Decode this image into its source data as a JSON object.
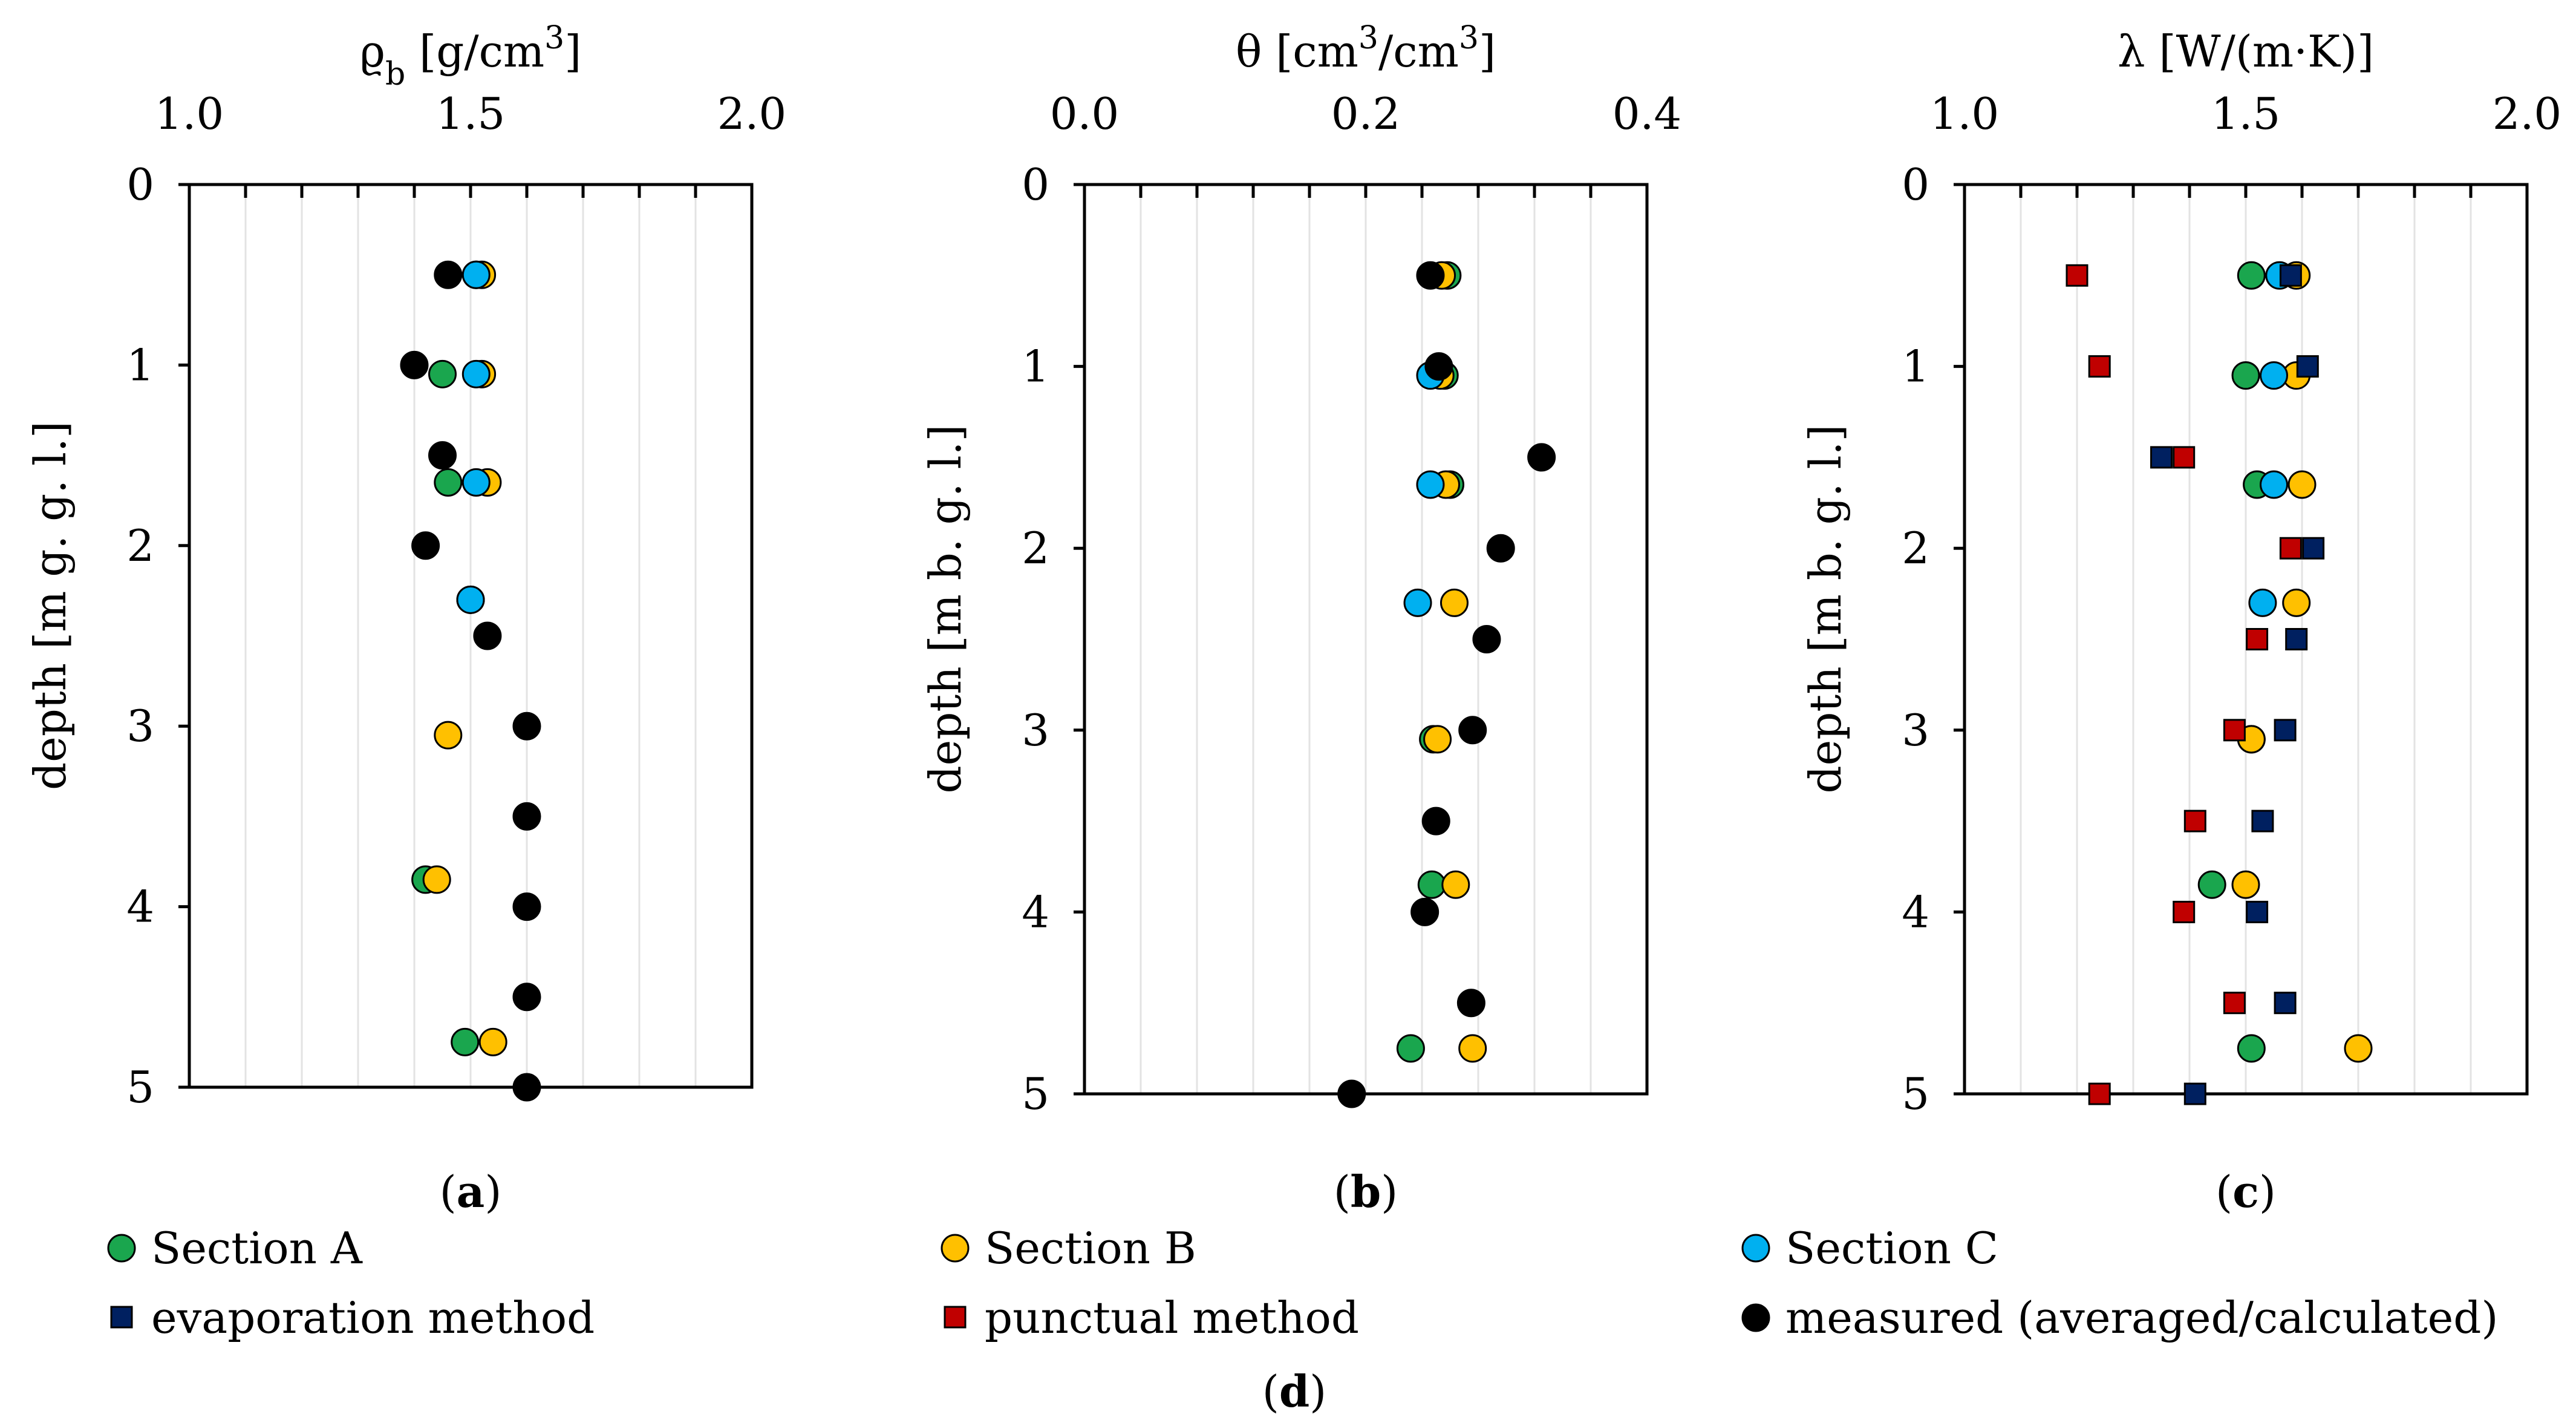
{
  "colors": {
    "section_a": "#1aa64e",
    "section_b": "#ffc000",
    "section_c": "#00b0f0",
    "evaporation": "#002060",
    "punctual": "#c00000",
    "measured": "#000000",
    "grid": "#e3e3e3"
  },
  "chart_data": [
    {
      "type": "scatter",
      "panel_label": "a",
      "xlabel": "ϱ",
      "xlabel_sub": "b",
      "xlabel_unit_pre": " [g/cm",
      "xlabel_sup": "3",
      "xlabel_unit_post": "]",
      "ylabel": "depth [m g. g. l.]",
      "xlim": [
        1.0,
        2.0
      ],
      "ylim": [
        0,
        5
      ],
      "xticks": [
        1.0,
        1.5,
        2.0
      ],
      "xtick_labels": [
        "1.0",
        "1.5",
        "2.0"
      ],
      "xminor_step": 0.1,
      "yticks": [
        0,
        1,
        2,
        3,
        4,
        5
      ],
      "ytick_labels": [
        "0",
        "1",
        "2",
        "3",
        "4",
        "5"
      ],
      "series": [
        {
          "name": "Section A",
          "key": "section_a",
          "marker": "circle",
          "points": [
            [
              1.51,
              0.5
            ],
            [
              1.45,
              1.05
            ],
            [
              1.46,
              1.65
            ],
            [
              1.5,
              2.3
            ],
            [
              1.42,
              3.85
            ],
            [
              1.49,
              4.75
            ]
          ]
        },
        {
          "name": "Section B",
          "key": "section_b",
          "marker": "circle",
          "points": [
            [
              1.52,
              0.5
            ],
            [
              1.52,
              1.05
            ],
            [
              1.53,
              1.65
            ],
            [
              1.46,
              3.05
            ],
            [
              1.44,
              3.85
            ],
            [
              1.54,
              4.75
            ]
          ]
        },
        {
          "name": "Section C",
          "key": "section_c",
          "marker": "circle",
          "points": [
            [
              1.51,
              0.5
            ],
            [
              1.51,
              1.05
            ],
            [
              1.51,
              1.65
            ],
            [
              1.5,
              2.3
            ]
          ]
        },
        {
          "name": "measured (averaged/calculated)",
          "key": "measured",
          "marker": "circle",
          "points": [
            [
              1.46,
              0.5
            ],
            [
              1.4,
              1.0
            ],
            [
              1.45,
              1.5
            ],
            [
              1.42,
              2.0
            ],
            [
              1.53,
              2.5
            ],
            [
              1.6,
              3.0
            ],
            [
              1.6,
              3.5
            ],
            [
              1.6,
              4.0
            ],
            [
              1.6,
              4.5
            ],
            [
              1.6,
              5.0
            ]
          ]
        }
      ]
    },
    {
      "type": "scatter",
      "panel_label": "b",
      "xlabel": "θ [cm",
      "xlabel_sub": "",
      "xlabel_unit_pre": "",
      "xlabel_sup": "3",
      "xlabel_unit_post": "/cm",
      "xlabel_sup2": "3",
      "xlabel_tail": "]",
      "ylabel": "depth [m b. g. l.]",
      "xlim": [
        0.0,
        0.4
      ],
      "ylim": [
        0,
        5
      ],
      "xticks": [
        0.0,
        0.2,
        0.4
      ],
      "xtick_labels": [
        "0.0",
        "0.2",
        "0.4"
      ],
      "xminor_step": 0.04,
      "yticks": [
        0,
        1,
        2,
        3,
        4,
        5
      ],
      "ytick_labels": [
        "0",
        "1",
        "2",
        "3",
        "4",
        "5"
      ],
      "series": [
        {
          "name": "Section A",
          "key": "section_a",
          "marker": "circle",
          "points": [
            [
              0.258,
              0.5
            ],
            [
              0.256,
              1.05
            ],
            [
              0.26,
              1.65
            ],
            [
              0.248,
              3.05
            ],
            [
              0.247,
              3.85
            ],
            [
              0.232,
              4.75
            ]
          ]
        },
        {
          "name": "Section B",
          "key": "section_b",
          "marker": "circle",
          "points": [
            [
              0.254,
              0.5
            ],
            [
              0.253,
              1.05
            ],
            [
              0.257,
              1.65
            ],
            [
              0.263,
              2.3
            ],
            [
              0.251,
              3.05
            ],
            [
              0.264,
              3.85
            ],
            [
              0.276,
              4.75
            ]
          ]
        },
        {
          "name": "Section C",
          "key": "section_c",
          "marker": "circle",
          "points": [
            [
              0.246,
              1.05
            ],
            [
              0.246,
              1.65
            ],
            [
              0.237,
              2.3
            ]
          ]
        },
        {
          "name": "measured (averaged/calculated)",
          "key": "measured",
          "marker": "circle",
          "points": [
            [
              0.246,
              0.5
            ],
            [
              0.252,
              1.0
            ],
            [
              0.325,
              1.5
            ],
            [
              0.296,
              2.0
            ],
            [
              0.286,
              2.5
            ],
            [
              0.276,
              3.0
            ],
            [
              0.25,
              3.5
            ],
            [
              0.242,
              4.0
            ],
            [
              0.275,
              4.5
            ],
            [
              0.19,
              5.0
            ]
          ]
        }
      ]
    },
    {
      "type": "scatter",
      "panel_label": "c",
      "xlabel": "λ [W/(m·K)]",
      "xlabel_sub": "",
      "xlabel_unit_pre": "",
      "xlabel_sup": "",
      "xlabel_unit_post": "",
      "ylabel": "depth [m b. g. l.]",
      "xlim": [
        1.0,
        2.0
      ],
      "ylim": [
        0,
        5
      ],
      "xticks": [
        1.0,
        1.5,
        2.0
      ],
      "xtick_labels": [
        "1.0",
        "1.5",
        "2.0"
      ],
      "xminor_step": 0.1,
      "yticks": [
        0,
        1,
        2,
        3,
        4,
        5
      ],
      "ytick_labels": [
        "0",
        "1",
        "2",
        "3",
        "4",
        "5"
      ],
      "series": [
        {
          "name": "Section A",
          "key": "section_a",
          "marker": "circle",
          "points": [
            [
              1.51,
              0.5
            ],
            [
              1.5,
              1.05
            ],
            [
              1.52,
              1.65
            ],
            [
              1.51,
              3.05
            ],
            [
              1.44,
              3.85
            ],
            [
              1.51,
              4.75
            ]
          ]
        },
        {
          "name": "Section B",
          "key": "section_b",
          "marker": "circle",
          "points": [
            [
              1.59,
              0.5
            ],
            [
              1.59,
              1.05
            ],
            [
              1.6,
              1.65
            ],
            [
              1.59,
              2.3
            ],
            [
              1.51,
              3.05
            ],
            [
              1.5,
              3.85
            ],
            [
              1.7,
              4.75
            ]
          ]
        },
        {
          "name": "Section C",
          "key": "section_c",
          "marker": "circle",
          "points": [
            [
              1.56,
              0.5
            ],
            [
              1.55,
              1.05
            ],
            [
              1.55,
              1.65
            ],
            [
              1.53,
              2.3
            ]
          ]
        },
        {
          "name": "evaporation method",
          "key": "evaporation",
          "marker": "square",
          "points": [
            [
              1.58,
              0.5
            ],
            [
              1.61,
              1.0
            ],
            [
              1.35,
              1.5
            ],
            [
              1.62,
              2.0
            ],
            [
              1.59,
              2.5
            ],
            [
              1.57,
              3.0
            ],
            [
              1.53,
              3.5
            ],
            [
              1.52,
              4.0
            ],
            [
              1.57,
              4.5
            ],
            [
              1.41,
              5.0
            ]
          ]
        },
        {
          "name": "punctual method",
          "key": "punctual",
          "marker": "square",
          "points": [
            [
              1.2,
              0.5
            ],
            [
              1.24,
              1.0
            ],
            [
              1.39,
              1.5
            ],
            [
              1.58,
              2.0
            ],
            [
              1.52,
              2.5
            ],
            [
              1.48,
              3.0
            ],
            [
              1.41,
              3.5
            ],
            [
              1.39,
              4.0
            ],
            [
              1.48,
              4.5
            ],
            [
              1.24,
              5.0
            ]
          ]
        }
      ]
    }
  ],
  "legend": {
    "items": [
      {
        "label": "Section A",
        "key": "section_a",
        "marker": "circle"
      },
      {
        "label": "Section B",
        "key": "section_b",
        "marker": "circle"
      },
      {
        "label": "Section C",
        "key": "section_c",
        "marker": "circle"
      },
      {
        "label": "evaporation method",
        "key": "evaporation",
        "marker": "square"
      },
      {
        "label": "punctual method",
        "key": "punctual",
        "marker": "square"
      },
      {
        "label": "measured (averaged/calculated)",
        "key": "measured",
        "marker": "circle"
      }
    ],
    "caption": "d"
  }
}
